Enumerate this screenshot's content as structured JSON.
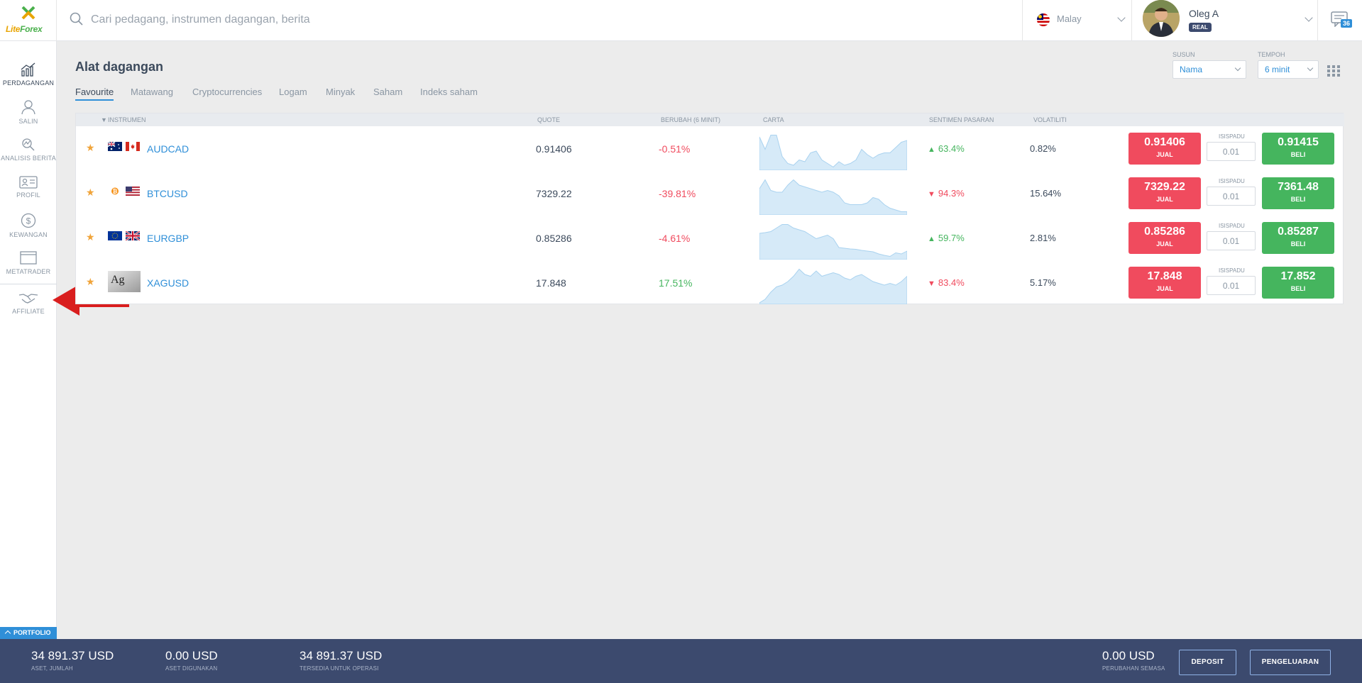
{
  "header": {
    "logo_text_1": "Lite",
    "logo_text_2": "Forex",
    "search_placeholder": "Cari pedagang, instrumen dagangan, berita",
    "language": "Malay",
    "user_name": "Oleg A",
    "account_type": "REAL",
    "chat_count": "36"
  },
  "sidebar": {
    "items": [
      {
        "label": "PERDAGANGAN",
        "icon": "trading-chart-icon"
      },
      {
        "label": "SALIN",
        "icon": "copy-user-icon"
      },
      {
        "label": "ANALISIS BERITA",
        "icon": "news-analysis-icon"
      },
      {
        "label": "PROFIL",
        "icon": "profile-card-icon"
      },
      {
        "label": "KEWANGAN",
        "icon": "dollar-coin-icon"
      },
      {
        "label": "METATRADER",
        "icon": "window-icon"
      },
      {
        "label": "AFFILIATE",
        "icon": "handshake-icon"
      }
    ],
    "portfolio_tab": "PORTFOLIO"
  },
  "main": {
    "title": "Alat dagangan",
    "tabs": [
      "Favourite",
      "Matawang",
      "Cryptocurrencies",
      "Logam",
      "Minyak",
      "Saham",
      "Indeks saham"
    ],
    "sort": {
      "label": "SUSUN",
      "value": "Nama"
    },
    "period": {
      "label": "TEMPOH",
      "value": "6 minit"
    }
  },
  "table": {
    "headers": {
      "instrument": "INSTRUMEN",
      "quote": "QUOTE",
      "change": "BERUBAH (6 MINIT)",
      "chart": "CARTA",
      "sentiment": "SENTIMEN PASARAN",
      "volatility": "VOLATILITI"
    },
    "lot_label": "ISISPADU",
    "sell_label": "JUAL",
    "buy_label": "BELI",
    "rows": [
      {
        "symbol": "AUDCAD",
        "quote": "0.91406",
        "change": "-0.51%",
        "change_dir": "down",
        "sentiment": "63.4%",
        "sentiment_dir": "up",
        "volatility": "0.82%",
        "sell": "0.91406",
        "buy": "0.91415",
        "lot": "0.01",
        "spark": [
          0.9,
          0.55,
          0.95,
          0.95,
          0.35,
          0.15,
          0.1,
          0.25,
          0.2,
          0.45,
          0.5,
          0.25,
          0.15,
          0.05,
          0.2,
          0.1,
          0.15,
          0.25,
          0.55,
          0.4,
          0.3,
          0.4,
          0.45,
          0.45,
          0.6,
          0.75,
          0.8
        ]
      },
      {
        "symbol": "BTCUSD",
        "quote": "7329.22",
        "change": "-39.81%",
        "change_dir": "down",
        "sentiment": "94.3%",
        "sentiment_dir": "down",
        "volatility": "15.64%",
        "sell": "7329.22",
        "buy": "7361.48",
        "lot": "0.01",
        "spark": [
          0.7,
          0.95,
          0.65,
          0.6,
          0.6,
          0.8,
          0.95,
          0.8,
          0.75,
          0.7,
          0.65,
          0.6,
          0.65,
          0.6,
          0.5,
          0.3,
          0.25,
          0.25,
          0.25,
          0.3,
          0.45,
          0.4,
          0.25,
          0.15,
          0.1,
          0.05,
          0.05
        ]
      },
      {
        "symbol": "EURGBP",
        "quote": "0.85286",
        "change": "-4.61%",
        "change_dir": "down",
        "sentiment": "59.7%",
        "sentiment_dir": "up",
        "volatility": "2.81%",
        "sell": "0.85286",
        "buy": "0.85287",
        "lot": "0.01",
        "spark": [
          0.7,
          0.72,
          0.75,
          0.85,
          0.95,
          0.95,
          0.85,
          0.8,
          0.75,
          0.65,
          0.55,
          0.6,
          0.65,
          0.55,
          0.3,
          0.28,
          0.26,
          0.25,
          0.22,
          0.2,
          0.18,
          0.12,
          0.08,
          0.05,
          0.15,
          0.12,
          0.2
        ]
      },
      {
        "symbol": "XAGUSD",
        "quote": "17.848",
        "change": "17.51%",
        "change_dir": "up",
        "sentiment": "83.4%",
        "sentiment_dir": "down",
        "volatility": "5.17%",
        "sell": "17.848",
        "buy": "17.852",
        "lot": "0.01",
        "spark": [
          0.0,
          0.1,
          0.3,
          0.45,
          0.5,
          0.6,
          0.75,
          0.95,
          0.8,
          0.75,
          0.9,
          0.75,
          0.8,
          0.85,
          0.8,
          0.7,
          0.65,
          0.75,
          0.8,
          0.7,
          0.6,
          0.55,
          0.5,
          0.55,
          0.5,
          0.6,
          0.75
        ]
      }
    ]
  },
  "footer": {
    "stats": [
      {
        "value": "34 891.37 USD",
        "label": "ASET, JUMLAH"
      },
      {
        "value": "0.00 USD",
        "label": "ASET DIGUNAKAN"
      },
      {
        "value": "34 891.37 USD",
        "label": "TERSEDIA UNTUK OPERASI"
      },
      {
        "value": "0.00 USD",
        "label": "PERUBAHAN SEMASA"
      }
    ],
    "deposit_label": "DEPOSIT",
    "withdraw_label": "PENGELUARAN"
  },
  "colors": {
    "accent": "#2f8fd8",
    "sell": "#f04b5e",
    "buy": "#45b55e",
    "footer": "#3c4a6e",
    "spark_fill": "#d6eaf8",
    "arrow": "#d91e1e"
  }
}
